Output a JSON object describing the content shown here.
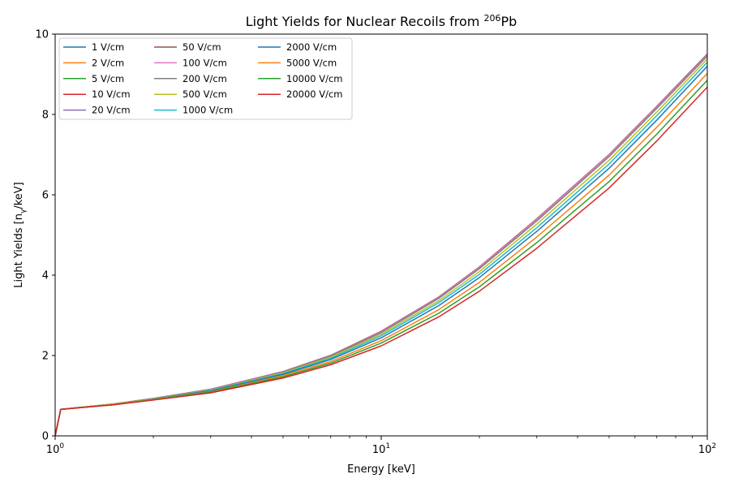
{
  "chart_data": {
    "type": "line",
    "title": {
      "main": "Light Yields for Nuclear Recoils from ",
      "sup": "206",
      "tail": "Pb"
    },
    "xlabel": "Energy [keV]",
    "ylabel": {
      "main": "Light Yields [n",
      "sub": "γ",
      "tail": "/keV]"
    },
    "xscale": "log",
    "xlim": [
      1,
      100
    ],
    "ylim": [
      0,
      10
    ],
    "xticks": [
      {
        "value": 1,
        "base": "10",
        "exp": "0"
      },
      {
        "value": 10,
        "base": "10",
        "exp": "1"
      },
      {
        "value": 100,
        "base": "10",
        "exp": "2"
      }
    ],
    "yticks": [
      {
        "value": 0,
        "label": "0"
      },
      {
        "value": 2,
        "label": "2"
      },
      {
        "value": 4,
        "label": "4"
      },
      {
        "value": 6,
        "label": "6"
      },
      {
        "value": 8,
        "label": "8"
      },
      {
        "value": 10,
        "label": "10"
      }
    ],
    "grid": false,
    "legend_position": "top-left",
    "legend_columns": 3,
    "x": [
      1,
      1.04,
      1.5,
      2,
      3,
      5,
      7,
      10,
      15,
      20,
      30,
      50,
      70,
      100
    ],
    "series": [
      {
        "name": "1 V/cm",
        "color": "#1f77b4",
        "values": [
          0,
          0.66,
          0.79,
          0.93,
          1.16,
          1.6,
          2.0,
          2.6,
          3.45,
          4.2,
          5.4,
          7.0,
          8.2,
          9.5
        ]
      },
      {
        "name": "2 V/cm",
        "color": "#ff7f0e",
        "values": [
          0,
          0.66,
          0.79,
          0.93,
          1.16,
          1.6,
          2.0,
          2.6,
          3.45,
          4.2,
          5.4,
          7.0,
          8.2,
          9.5
        ]
      },
      {
        "name": "5 V/cm",
        "color": "#2ca02c",
        "values": [
          0,
          0.66,
          0.79,
          0.93,
          1.16,
          1.6,
          2.0,
          2.6,
          3.45,
          4.2,
          5.4,
          7.0,
          8.2,
          9.5
        ]
      },
      {
        "name": "10 V/cm",
        "color": "#d62728",
        "values": [
          0,
          0.66,
          0.79,
          0.93,
          1.16,
          1.6,
          2.0,
          2.6,
          3.45,
          4.2,
          5.4,
          7.0,
          8.2,
          9.5
        ]
      },
      {
        "name": "20 V/cm",
        "color": "#9467bd",
        "values": [
          0,
          0.66,
          0.79,
          0.93,
          1.16,
          1.6,
          2.0,
          2.6,
          3.45,
          4.2,
          5.4,
          7.0,
          8.2,
          9.5
        ]
      },
      {
        "name": "50 V/cm",
        "color": "#8c564b",
        "values": [
          0,
          0.66,
          0.79,
          0.93,
          1.16,
          1.6,
          2.0,
          2.6,
          3.45,
          4.2,
          5.4,
          7.0,
          8.2,
          9.49
        ]
      },
      {
        "name": "100 V/cm",
        "color": "#e377c2",
        "values": [
          0,
          0.66,
          0.79,
          0.93,
          1.16,
          1.6,
          1.99,
          2.59,
          3.44,
          4.19,
          5.39,
          6.99,
          8.19,
          9.48
        ]
      },
      {
        "name": "200 V/cm",
        "color": "#7f7f7f",
        "values": [
          0,
          0.66,
          0.79,
          0.93,
          1.15,
          1.59,
          1.98,
          2.57,
          3.42,
          4.16,
          5.35,
          6.95,
          8.15,
          9.45
        ]
      },
      {
        "name": "500 V/cm",
        "color": "#bcbd22",
        "values": [
          0,
          0.66,
          0.79,
          0.92,
          1.14,
          1.57,
          1.96,
          2.53,
          3.36,
          4.09,
          5.27,
          6.86,
          8.06,
          9.38
        ]
      },
      {
        "name": "1000 V/cm",
        "color": "#17becf",
        "values": [
          0,
          0.66,
          0.78,
          0.92,
          1.13,
          1.55,
          1.93,
          2.49,
          3.31,
          4.02,
          5.18,
          6.77,
          7.97,
          9.3
        ]
      },
      {
        "name": "2000 V/cm",
        "color": "#1f77b4",
        "values": [
          0,
          0.66,
          0.78,
          0.91,
          1.12,
          1.53,
          1.9,
          2.44,
          3.24,
          3.94,
          5.09,
          6.66,
          7.86,
          9.2
        ]
      },
      {
        "name": "5000 V/cm",
        "color": "#ff7f0e",
        "values": [
          0,
          0.66,
          0.78,
          0.91,
          1.1,
          1.5,
          1.85,
          2.37,
          3.14,
          3.82,
          4.95,
          6.49,
          7.68,
          9.02
        ]
      },
      {
        "name": "10000 V/cm",
        "color": "#2ca02c",
        "values": [
          0,
          0.66,
          0.77,
          0.9,
          1.09,
          1.47,
          1.81,
          2.31,
          3.05,
          3.71,
          4.81,
          6.33,
          7.51,
          8.85
        ]
      },
      {
        "name": "20000 V/cm",
        "color": "#d62728",
        "values": [
          0,
          0.66,
          0.77,
          0.89,
          1.07,
          1.44,
          1.77,
          2.24,
          2.96,
          3.6,
          4.67,
          6.17,
          7.34,
          8.68
        ]
      }
    ]
  }
}
